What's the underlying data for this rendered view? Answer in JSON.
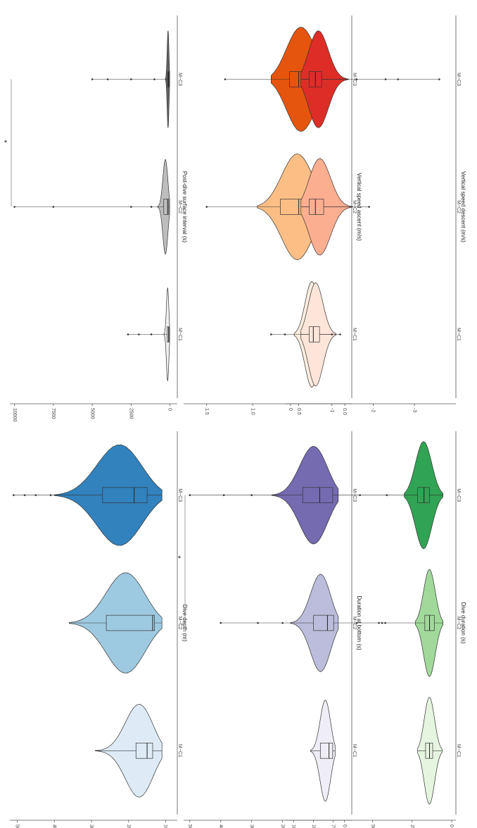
{
  "chart_data": [
    {
      "type": "violin",
      "ylabel": "Dive duration (s)",
      "ylim": [
        0,
        1050
      ],
      "yticks": [
        0,
        250,
        500,
        750,
        1000
      ],
      "categories": [
        "M−C1",
        "M−C2",
        "M−C3"
      ],
      "fill_colors": [
        "#e5f5e0",
        "#a1d99b",
        "#31a354"
      ],
      "groups": [
        {
          "min": 60,
          "q1": 120,
          "median": 140,
          "q3": 165,
          "max": 215,
          "outliers": []
        },
        {
          "min": 55,
          "q1": 110,
          "median": 140,
          "q3": 170,
          "max": 230,
          "outliers": [
            420,
            440,
            460,
            600,
            780
          ]
        },
        {
          "min": 55,
          "q1": 140,
          "median": 175,
          "q3": 215,
          "max": 300,
          "outliers": [
            410,
            580,
            780,
            1020
          ]
        }
      ],
      "significance": []
    },
    {
      "type": "violin",
      "ylabel": "Dive depth (m)",
      "ylim": [
        8,
        52
      ],
      "yticks": [
        10,
        20,
        30,
        40,
        50
      ],
      "categories": [
        "M−C1",
        "M−C2",
        "M−C3"
      ],
      "fill_colors": [
        "#deebf7",
        "#9ecae1",
        "#3182bd"
      ],
      "groups": [
        {
          "min": 11,
          "q1": 13.5,
          "median": 15,
          "q3": 18,
          "max": 29,
          "outliers": []
        },
        {
          "min": 11,
          "q1": 13,
          "median": 13.5,
          "q3": 26,
          "max": 36,
          "outliers": []
        },
        {
          "min": 11,
          "q1": 15,
          "median": 18.5,
          "q3": 27,
          "max": 40,
          "outliers": [
            41,
            45,
            48,
            51
          ]
        }
      ],
      "significance": []
    },
    {
      "type": "violin",
      "ylabel": "Duration at bottom (s)",
      "ylim": [
        -10,
        520
      ],
      "yticks": [
        0,
        100,
        200,
        300,
        400,
        500
      ],
      "categories": [
        "M−C1",
        "M−C2",
        "M−C3"
      ],
      "fill_colors": [
        "#efedf5",
        "#bcbddc",
        "#756bb1"
      ],
      "groups": [
        {
          "min": 30,
          "q1": 38,
          "median": 50,
          "q3": 78,
          "max": 110,
          "outliers": []
        },
        {
          "min": 20,
          "q1": 35,
          "median": 55,
          "q3": 100,
          "max": 175,
          "outliers": [
            200,
            280,
            400
          ]
        },
        {
          "min": 20,
          "q1": 38,
          "median": 80,
          "q3": 135,
          "max": 235,
          "outliers": [
            300,
            390,
            500
          ]
        }
      ],
      "significance": [
        {
          "from": 1,
          "to": 2,
          "label": "*"
        }
      ]
    },
    {
      "type": "violin",
      "ylabel": "Post-dive surface interval (s)",
      "ylim": [
        -200,
        10300
      ],
      "yticks": [
        0,
        2500,
        5000,
        7500,
        10000
      ],
      "categories": [
        "M−C1",
        "M−C2",
        "M−C3"
      ],
      "fill_colors": [
        "#f0f0f0",
        "#bdbdbd",
        "#636363"
      ],
      "groups": [
        {
          "min": 20,
          "q1": 60,
          "median": 100,
          "q3": 180,
          "max": 400,
          "outliers": [
            1200,
            2000,
            2700
          ]
        },
        {
          "min": 20,
          "q1": 80,
          "median": 150,
          "q3": 400,
          "max": 800,
          "outliers": [
            1200,
            2500,
            7500,
            10000
          ]
        },
        {
          "min": 20,
          "q1": 60,
          "median": 100,
          "q3": 150,
          "max": 300,
          "outliers": [
            1000,
            2500,
            4000,
            5000
          ]
        }
      ],
      "significance": [
        {
          "from": 1,
          "to": 2,
          "label": "*"
        }
      ]
    },
    {
      "type": "violin",
      "ylabel": "Vertical speed ascent (m/s)",
      "ylim": [
        -0.03,
        1.75
      ],
      "yticks": [
        0.0,
        0.5,
        1.0,
        1.5
      ],
      "ytick_labels": [
        "0.0",
        "0.5",
        "1.0",
        "1.5"
      ],
      "categories": [
        "M−C1",
        "M−C2",
        "M−C3"
      ],
      "fill_colors": [
        "#feedde",
        "#fdbe85",
        "#e6550d"
      ],
      "groups": [
        {
          "min": 0.2,
          "q1": 0.3,
          "median": 0.35,
          "q3": 0.4,
          "max": 0.55,
          "outliers": [
            0.65,
            0.8
          ]
        },
        {
          "min": 0.15,
          "q1": 0.3,
          "median": 0.5,
          "q3": 0.7,
          "max": 0.95,
          "outliers": [
            1.5
          ]
        },
        {
          "min": 0.05,
          "q1": 0.4,
          "median": 0.5,
          "q3": 0.6,
          "max": 0.8,
          "outliers": [
            1.3
          ]
        }
      ],
      "significance": []
    },
    {
      "type": "violin",
      "ylabel": "Vertical speed descent (m/s)",
      "ylim": [
        -3.9,
        0.12
      ],
      "yticks": [
        0,
        -1,
        -2,
        -3
      ],
      "ytick_labels": [
        "0",
        "-1",
        "-2",
        "-3"
      ],
      "categories": [
        "M−C1",
        "M−C2",
        "M−C3"
      ],
      "fill_colors": [
        "#fee5d9",
        "#fcae91",
        "#de2d26"
      ],
      "groups": [
        {
          "min": -1.1,
          "q1": -0.7,
          "median": -0.55,
          "q3": -0.45,
          "max": -0.25,
          "outliers": [
            -1.0,
            -1.2
          ]
        },
        {
          "min": -1.5,
          "q1": -0.8,
          "median": -0.6,
          "q3": -0.45,
          "max": -0.25,
          "outliers": [
            -1.9
          ]
        },
        {
          "min": -1.4,
          "q1": -0.75,
          "median": -0.6,
          "q3": -0.45,
          "max": -0.25,
          "outliers": [
            -1.6,
            -2.3,
            -2.6,
            -3.6
          ]
        }
      ],
      "significance": []
    }
  ]
}
